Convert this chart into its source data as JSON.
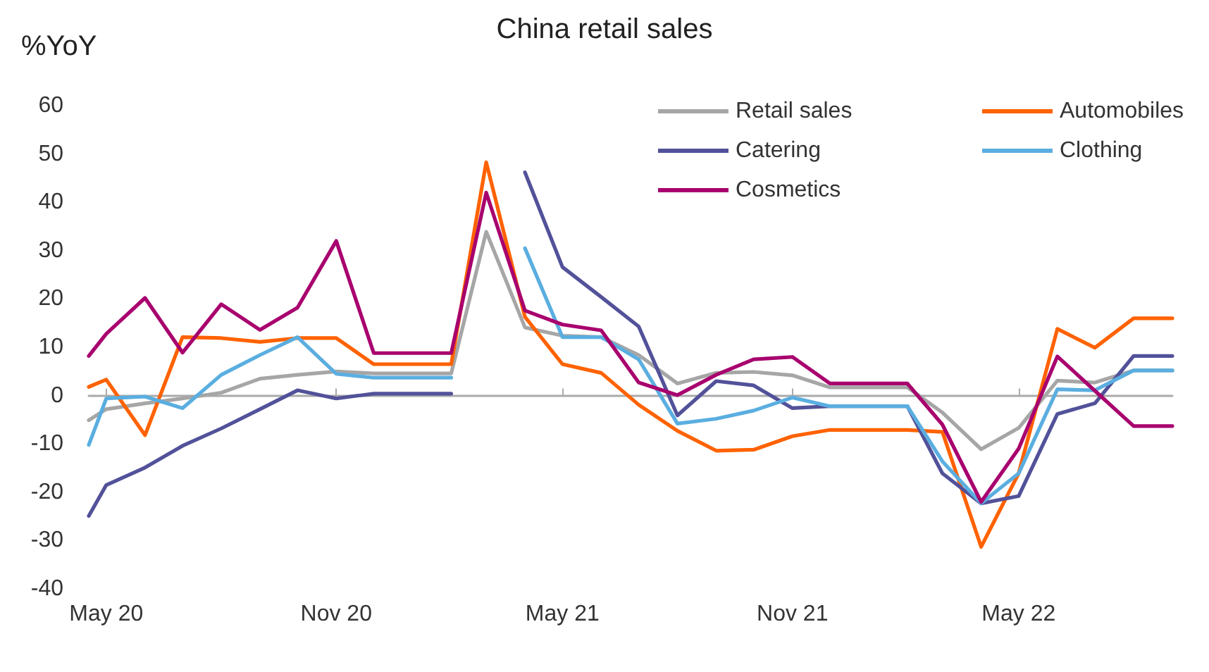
{
  "chart_data": {
    "type": "line",
    "title": "China retail sales",
    "ylabel": "%YoY",
    "x": [
      "2020-04-17",
      "2020-05",
      "2020-06",
      "2020-07",
      "2020-08",
      "2020-09",
      "2020-10",
      "2020-11",
      "2020-12",
      "2021-01",
      "2021-02",
      "2021-03",
      "2021-04",
      "2021-05",
      "2021-06",
      "2021-07",
      "2021-08",
      "2021-09",
      "2021-10",
      "2021-11",
      "2021-12",
      "2022-01",
      "2022-02",
      "2022-03",
      "2022-04",
      "2022-05",
      "2022-06",
      "2022-07",
      "2022-08",
      "2022-09"
    ],
    "series": [
      {
        "name": "Retail sales",
        "color": "#a6a6a6",
        "values": [
          -5.1,
          -2.8,
          -1.6,
          -0.6,
          0.6,
          3.5,
          4.3,
          5.0,
          4.6,
          4.6,
          4.6,
          33.9,
          14.1,
          12.4,
          12.1,
          8.4,
          2.5,
          4.7,
          4.9,
          4.2,
          1.7,
          1.7,
          1.7,
          -3.5,
          -11.1,
          -6.7,
          3.1,
          2.7,
          5.2,
          5.2
        ]
      },
      {
        "name": "Automobiles",
        "color": "#ff6200",
        "values": [
          1.8,
          3.3,
          -8.2,
          12.1,
          11.9,
          11.1,
          11.9,
          11.9,
          6.5,
          6.5,
          6.5,
          48.3,
          16.3,
          6.5,
          4.7,
          -1.9,
          -7.3,
          -11.4,
          -11.2,
          -8.4,
          -7.1,
          -7.1,
          -7.1,
          -7.5,
          -31.3,
          -16.1,
          13.8,
          9.9,
          16,
          16
        ]
      },
      {
        "name": "Catering",
        "color": "#525199",
        "values": [
          -24.9,
          -18.5,
          -14.9,
          -10.4,
          -6.8,
          -2.8,
          1.1,
          -0.6,
          0.4,
          0.4,
          0.4,
          null,
          46.2,
          26.6,
          20.4,
          14.3,
          -4.1,
          3.0,
          2.1,
          -2.6,
          -2.2,
          -2.2,
          -2.2,
          -16.1,
          -22.3,
          -20.8,
          -3.8,
          -1.6,
          8.2,
          8.2
        ]
      },
      {
        "name": "Clothing",
        "color": "#5aaee0",
        "values": [
          -10.2,
          -0.6,
          -0.2,
          -2.6,
          4.3,
          8.4,
          12.1,
          4.5,
          3.7,
          3.7,
          3.7,
          null,
          30.5,
          12.1,
          12.1,
          7.5,
          -5.8,
          -4.8,
          -3.1,
          -0.4,
          -2.2,
          -2.2,
          -2.2,
          -13.6,
          -22.3,
          -16.1,
          1.3,
          1.1,
          5.2,
          5.2
        ]
      },
      {
        "name": "Cosmetics",
        "color": "#a8006e",
        "values": [
          8.2,
          12.8,
          20.2,
          8.9,
          18.9,
          13.6,
          18.2,
          32,
          8.8,
          8.8,
          8.8,
          42,
          17.6,
          14.7,
          13.5,
          2.7,
          0.1,
          4.3,
          7.5,
          8.0,
          2.5,
          2.5,
          2.5,
          -6,
          -22,
          -11,
          8.1,
          1,
          -6.3,
          -6.3
        ]
      }
    ],
    "xlim": [
      "2020-04-17",
      "2022-09"
    ],
    "xticks": [
      {
        "value": "2020-05",
        "label": "May 20"
      },
      {
        "value": "2020-11",
        "label": "Nov 20"
      },
      {
        "value": "2021-05",
        "label": "May 21"
      },
      {
        "value": "2021-11",
        "label": "Nov 21"
      },
      {
        "value": "2022-05",
        "label": "May 22"
      }
    ],
    "ylim": [
      -40,
      60
    ],
    "yticks": [
      -40,
      -30,
      -20,
      -10,
      0,
      10,
      20,
      30,
      40,
      50,
      60
    ],
    "legend": "top right",
    "marker": "none",
    "line_style": "solid"
  }
}
